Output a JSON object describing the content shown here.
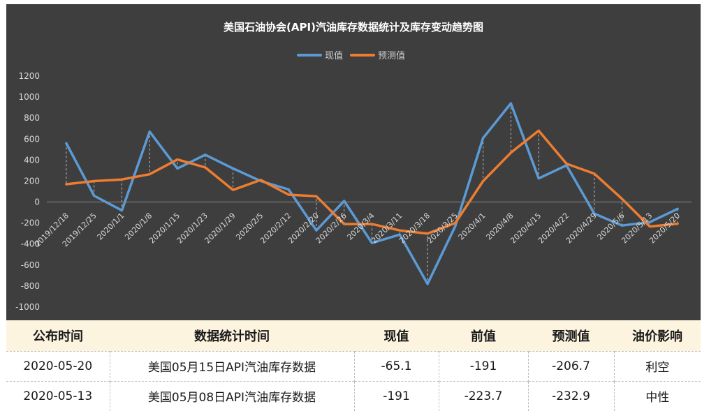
{
  "chart_data": {
    "type": "line",
    "title": "美国石油协会(API)汽油库存数据统计及库存变动趋势图",
    "categories": [
      "2019/12/18",
      "2019/12/25",
      "2020/1/1",
      "2020/1/8",
      "2020/1/15",
      "2020/1/23",
      "2020/1/29",
      "2020/2/5",
      "2020/2/12",
      "2020/2/20",
      "2020/2/26",
      "2020/3/4",
      "2020/3/11",
      "2020/3/18",
      "2020/3/25",
      "2020/4/1",
      "2020/4/8",
      "2020/4/15",
      "2020/4/22",
      "2020/4/29",
      "2020/5/6",
      "2020/5/13",
      "2020/5/20"
    ],
    "series": [
      {
        "name": "现值",
        "color": "#5b9bd5",
        "values": [
          560,
          60,
          -80,
          670,
          320,
          450,
          320,
          200,
          120,
          -270,
          10,
          -390,
          -310,
          -780,
          -230,
          610,
          940,
          225,
          350,
          -110,
          -223.7,
          -191,
          -65.1
        ]
      },
      {
        "name": "预测值",
        "color": "#ed7d31",
        "values": [
          170,
          200,
          215,
          265,
          405,
          330,
          115,
          210,
          70,
          55,
          -210,
          -210,
          -270,
          -300,
          -200,
          200,
          470,
          680,
          365,
          270,
          30,
          -232.9,
          -206.7
        ]
      }
    ],
    "ylim": [
      -1000,
      1200
    ],
    "yticks": [
      -1000,
      -800,
      -600,
      -400,
      -200,
      0,
      200,
      400,
      600,
      800,
      1000,
      1200
    ],
    "legend_position": "top",
    "drop_lines": true,
    "grid": false
  },
  "table": {
    "headers": [
      "公布时间",
      "数据统计时间",
      "现值",
      "前值",
      "预测值",
      "油价影响"
    ],
    "rows": [
      [
        "2020-05-20",
        "美国05月15日API汽油库存数据",
        "-65.1",
        "-191",
        "-206.7",
        "利空"
      ],
      [
        "2020-05-13",
        "美国05月08日API汽油库存数据",
        "-191",
        "-223.7",
        "-232.9",
        "中性"
      ]
    ]
  }
}
